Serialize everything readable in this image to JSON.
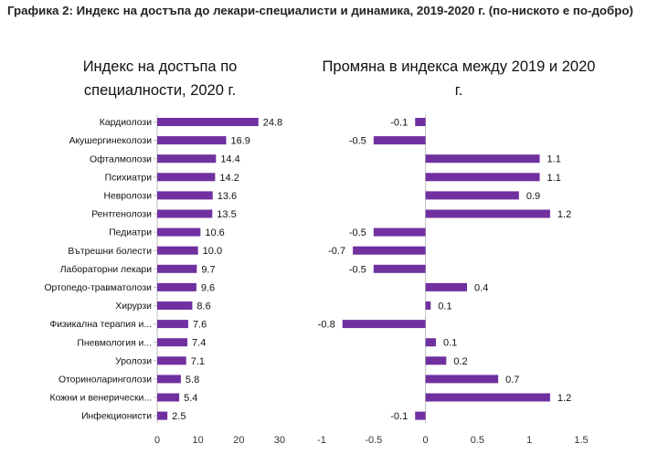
{
  "figure_caption": "Графика 2: Индекс на достъпа до лекари-специалисти и динамика, 2019-2020 г. (по-ниското е по-добро)",
  "colors": {
    "bar": "#7030a0",
    "axis": "#bfbfbf"
  },
  "chart_data": [
    {
      "type": "bar",
      "orientation": "horizontal",
      "title": "Индекс на достъпа по специалности, 2020 г.",
      "categories": [
        "Кардиолози",
        "Акушергинеколози",
        "Офталмолози",
        "Психиатри",
        "Невролози",
        "Рентгенолози",
        "Педиатри",
        "Вътрешни болести",
        "Лабораторни лекари",
        "Ортопедо-травматолози",
        "Хирурзи",
        "Физикална терапия и...",
        "Пневмология и...",
        "Уролози",
        "Оториноларинголози",
        "Кожни и венерически...",
        "Инфекционисти"
      ],
      "values": [
        24.8,
        16.9,
        14.4,
        14.2,
        13.6,
        13.5,
        10.6,
        10.0,
        9.7,
        9.6,
        8.6,
        7.6,
        7.4,
        7.1,
        5.8,
        5.4,
        2.5
      ],
      "data_labels": [
        "24.8",
        "16.9",
        "14.4",
        "14.2",
        "13.6",
        "13.5",
        "10.6",
        "10.0",
        "9.7",
        "9.6",
        "8.6",
        "7.6",
        "7.4",
        "7.1",
        "5.8",
        "5.4",
        "2.5"
      ],
      "xlim": [
        0,
        30
      ],
      "xticks": [
        0,
        10,
        20,
        30
      ],
      "xtick_labels": [
        "0",
        "10",
        "20",
        "30"
      ],
      "grid": false,
      "legend": "none"
    },
    {
      "type": "bar",
      "orientation": "horizontal",
      "title": "Промяна в индекса между 2019 и 2020 г.",
      "categories": [
        "Кардиолози",
        "Акушергинеколози",
        "Офталмолози",
        "Психиатри",
        "Невролози",
        "Рентгенолози",
        "Педиатри",
        "Вътрешни болести",
        "Лабораторни лекари",
        "Ортопедо-травматолози",
        "Хирурзи",
        "Физикална терапия и...",
        "Пневмология и...",
        "Уролози",
        "Оториноларинголози",
        "Кожни и венерически...",
        "Инфекционисти"
      ],
      "values": [
        -0.1,
        -0.5,
        1.1,
        1.1,
        0.9,
        1.2,
        -0.5,
        -0.7,
        -0.5,
        0.4,
        0.05,
        -0.8,
        0.1,
        0.2,
        0.7,
        1.2,
        -0.1
      ],
      "data_labels": [
        "-0.1",
        "-0.5",
        "1.1",
        "1.1",
        "0.9",
        "1.2",
        "-0.5",
        "-0.7",
        "-0.5",
        "0.4",
        "0.1",
        "-0.8",
        "0.1",
        "0.2",
        "0.7",
        "1.2",
        "-0.1"
      ],
      "xlim": [
        -1,
        1.5
      ],
      "xticks": [
        -1,
        -0.5,
        0,
        0.5,
        1,
        1.5
      ],
      "xtick_labels": [
        "-1",
        "-0.5",
        "0",
        "0.5",
        "1",
        "1.5"
      ],
      "grid": false,
      "legend": "none"
    }
  ]
}
